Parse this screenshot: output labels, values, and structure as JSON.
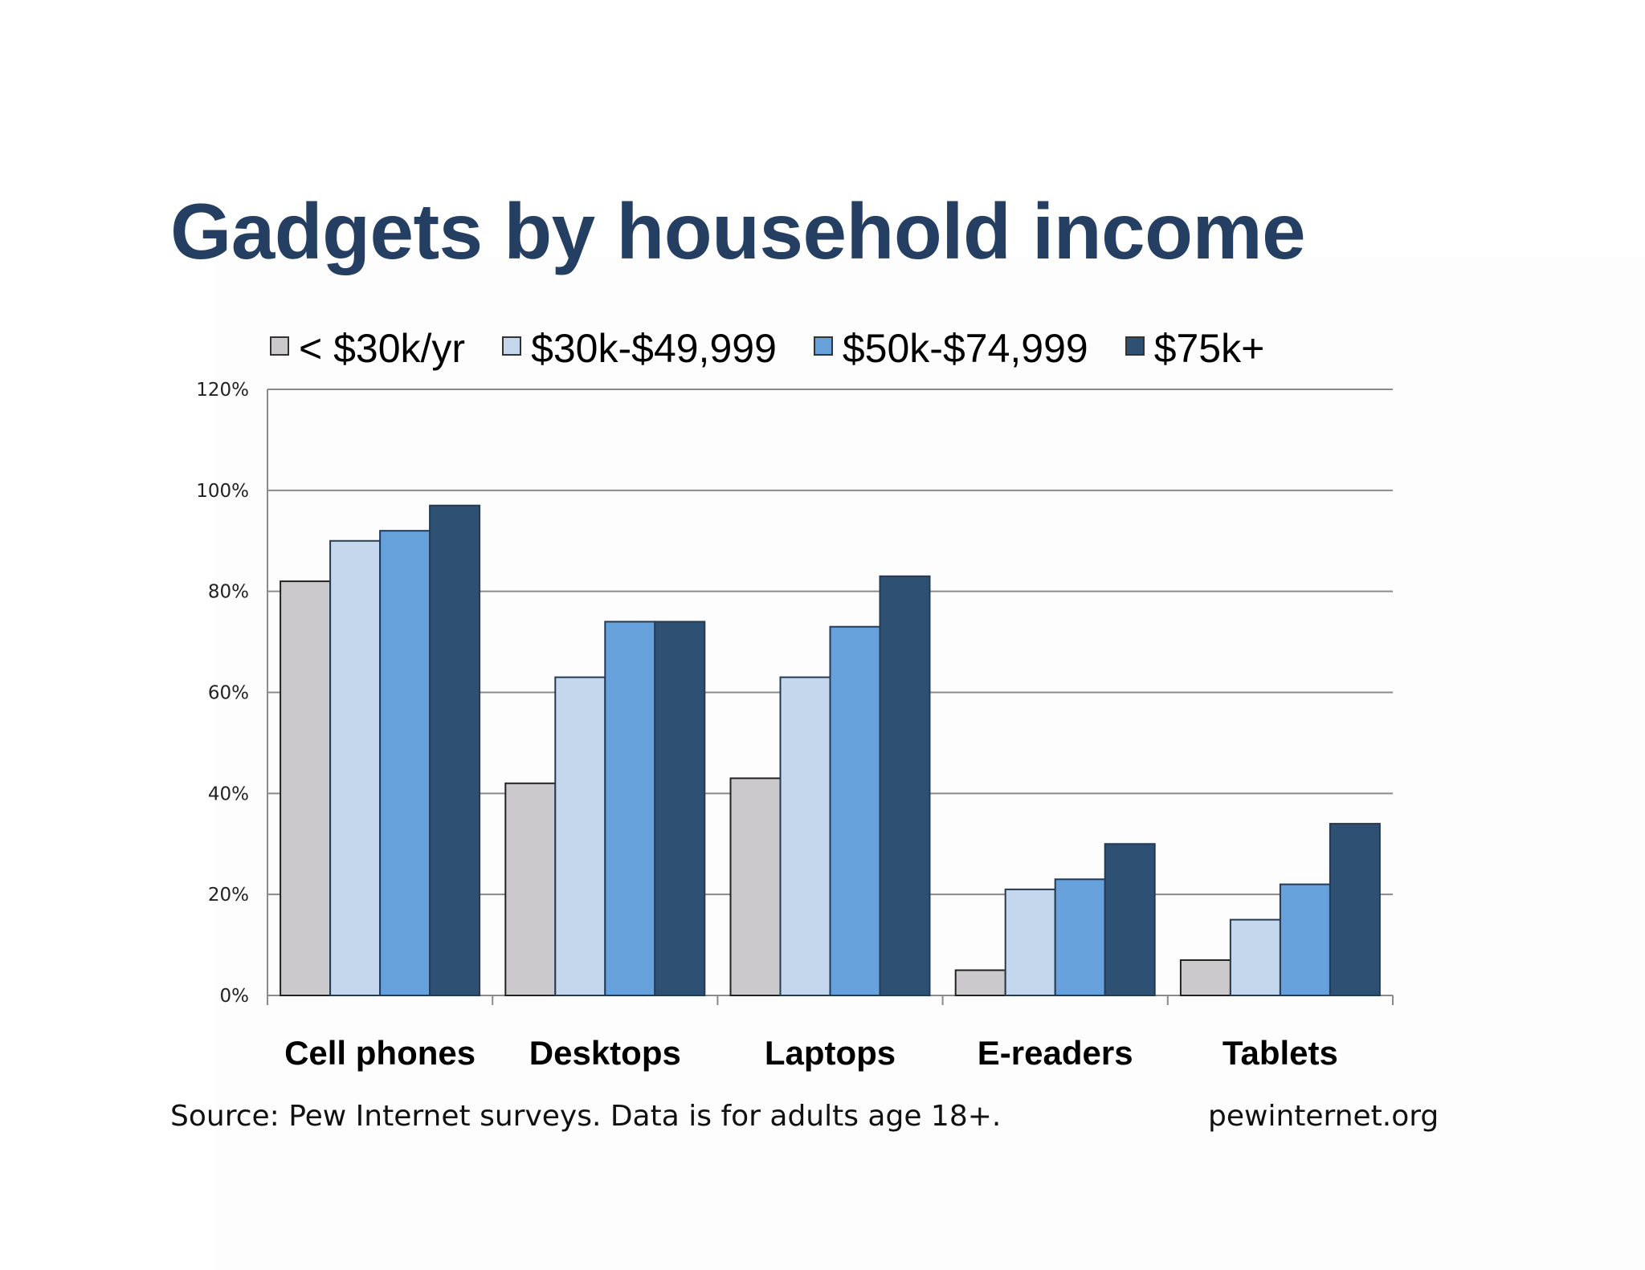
{
  "title": "Gadgets by household income",
  "footer": {
    "source": "Source: Pew Internet surveys. Data is for adults age 18+.",
    "site": "pewinternet.org"
  },
  "chart_data": {
    "type": "bar",
    "title": "Gadgets by household income",
    "categories": [
      "Cell phones",
      "Desktops",
      "Laptops",
      "E-readers",
      "Tablets"
    ],
    "series": [
      {
        "name": "< $30k/yr",
        "color": "#cbc9cb",
        "values": [
          82,
          42,
          43,
          5,
          7
        ]
      },
      {
        "name": "$30k-$49,999",
        "color": "#c4d7ec",
        "values": [
          90,
          63,
          63,
          21,
          15
        ]
      },
      {
        "name": "$50k-$74,999",
        "color": "#66a1dc",
        "values": [
          92,
          74,
          73,
          23,
          22
        ]
      },
      {
        "name": "$75k+",
        "color": "#2e5072",
        "values": [
          97,
          74,
          83,
          30,
          34
        ]
      }
    ],
    "yticks": [
      "0%",
      "20%",
      "40%",
      "60%",
      "80%",
      "100%",
      "120%"
    ],
    "ylim": [
      0,
      120
    ],
    "grid": true,
    "legend": "top"
  }
}
